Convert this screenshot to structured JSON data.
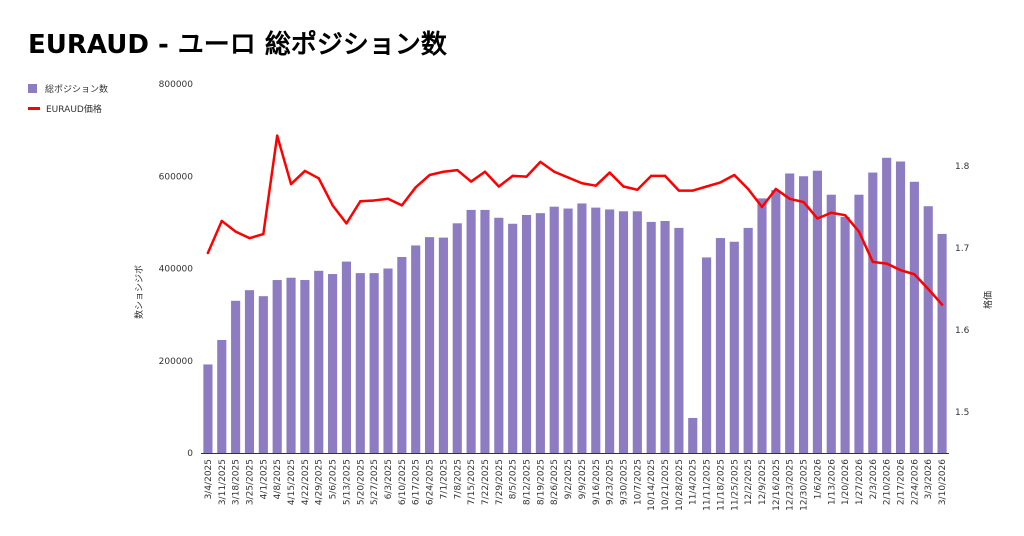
{
  "title": "EURAUD - ユーロ 総ポジション数",
  "legend": {
    "bars_label": "総ポジション数",
    "line_label": "EURAUD価格"
  },
  "colors": {
    "bars": "#8e7cc3",
    "line": "#ff0000"
  },
  "chart_data": {
    "type": "bar+line",
    "title": "EURAUD - ユーロ 総ポジション数",
    "legend_position": "top-left",
    "grid": false,
    "ylabel_left": "数ショシジボ",
    "ylabel_right": "格価",
    "ylim_left": [
      0,
      800000
    ],
    "yticks_left": [
      "0",
      "200000",
      "400000",
      "600000",
      "800000"
    ],
    "ylim_right": [
      1.45,
      1.9
    ],
    "yticks_right": [
      "1.5",
      "1.6",
      "1.7",
      "1.8"
    ],
    "categories": [
      "3/4/2025",
      "3/11/2025",
      "3/18/2025",
      "3/25/2025",
      "4/1/2025",
      "4/8/2025",
      "4/15/2025",
      "4/22/2025",
      "4/29/2025",
      "5/6/2025",
      "5/13/2025",
      "5/20/2025",
      "5/27/2025",
      "6/3/2025",
      "6/10/2025",
      "6/17/2025",
      "6/24/2025",
      "7/1/2025",
      "7/8/2025",
      "7/15/2025",
      "7/22/2025",
      "7/29/2025",
      "8/5/2025",
      "8/12/2025",
      "8/19/2025",
      "8/26/2025",
      "9/2/2025",
      "9/9/2025",
      "9/16/2025",
      "9/23/2025",
      "9/30/2025",
      "10/7/2025",
      "10/14/2025",
      "10/21/2025",
      "10/28/2025",
      "11/4/2025",
      "11/11/2025",
      "11/18/2025",
      "11/25/2025",
      "12/2/2025",
      "12/9/2025",
      "12/16/2025",
      "12/23/2025",
      "12/30/2025",
      "1/6/2026",
      "1/13/2026",
      "1/20/2026",
      "1/27/2026",
      "2/3/2026",
      "2/10/2026",
      "2/17/2026",
      "2/24/2026",
      "3/3/2026",
      "3/10/2026"
    ],
    "series": [
      {
        "name": "総ポジション数",
        "type": "bar",
        "axis": "left",
        "values": [
          192000,
          245000,
          330000,
          353000,
          340000,
          375000,
          380000,
          375000,
          395000,
          388000,
          415000,
          390000,
          390000,
          400000,
          425000,
          450000,
          468000,
          467000,
          498000,
          527000,
          527000,
          510000,
          497000,
          516000,
          520000,
          534000,
          530000,
          541000,
          532000,
          528000,
          524000,
          524000,
          501000,
          503000,
          488000,
          76000,
          424000,
          466000,
          458000,
          488000,
          552000,
          570000,
          606000,
          600000,
          612000,
          560000,
          512000,
          560000,
          608000,
          640000,
          632000,
          588000,
          535000,
          475000
        ]
      },
      {
        "name": "EURAUD価格",
        "type": "line",
        "axis": "right",
        "values": [
          1.694,
          1.733,
          1.72,
          1.712,
          1.717,
          1.837,
          1.778,
          1.794,
          1.785,
          1.752,
          1.73,
          1.757,
          1.758,
          1.76,
          1.752,
          1.774,
          1.789,
          1.793,
          1.795,
          1.781,
          1.793,
          1.775,
          1.788,
          1.787,
          1.805,
          1.793,
          1.786,
          1.779,
          1.776,
          1.792,
          1.775,
          1.771,
          1.788,
          1.788,
          1.77,
          1.77,
          1.775,
          1.78,
          1.789,
          1.772,
          1.75,
          1.772,
          1.76,
          1.756,
          1.736,
          1.743,
          1.74,
          1.72,
          1.683,
          1.681,
          1.673,
          1.668,
          1.65,
          1.631
        ]
      }
    ]
  }
}
